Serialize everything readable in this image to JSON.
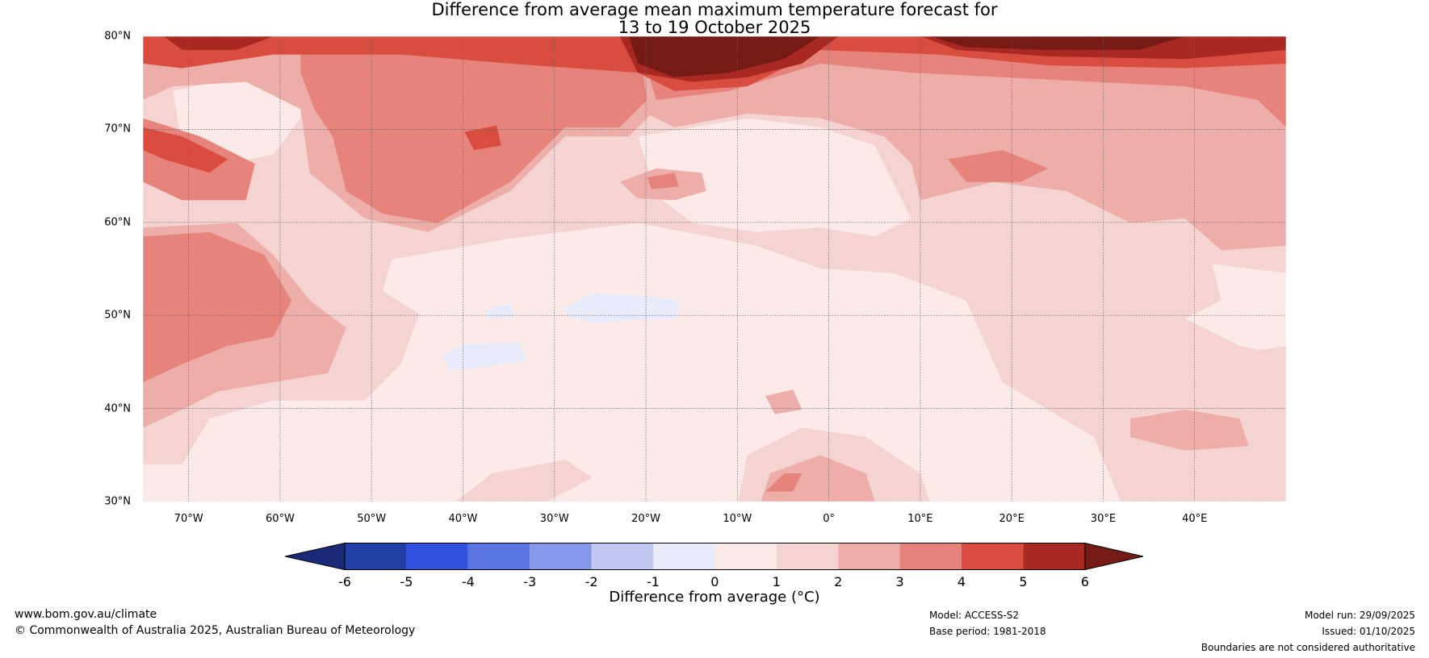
{
  "title": {
    "line1": "Difference from average mean maximum temperature forecast for",
    "line2": "13 to 19 October 2025"
  },
  "chart_data": {
    "type": "heatmap",
    "subtype": "filled contour map",
    "title": "Difference from average mean maximum temperature forecast for 13 to 19 October 2025",
    "lat_range": [
      30,
      80
    ],
    "lon_range": [
      -75,
      50
    ],
    "lat_ticks": [
      "30°N",
      "40°N",
      "50°N",
      "60°N",
      "70°N",
      "80°N"
    ],
    "lat_values": [
      30,
      40,
      50,
      60,
      70,
      80
    ],
    "lon_ticks": [
      "70°W",
      "60°W",
      "50°W",
      "40°W",
      "30°W",
      "20°W",
      "10°W",
      "0°",
      "10°E",
      "20°E",
      "30°E",
      "40°E"
    ],
    "lon_values": [
      -70,
      -60,
      -50,
      -40,
      -30,
      -20,
      -10,
      0,
      10,
      20,
      30,
      40
    ],
    "colorbar": {
      "label": "Difference from average (°C)",
      "ticks": [
        "-6",
        "-5",
        "-4",
        "-3",
        "-2",
        "-1",
        "0",
        "1",
        "2",
        "3",
        "4",
        "5",
        "6"
      ],
      "levels": [
        -6,
        -5,
        -4,
        -3,
        -2,
        -1,
        0,
        1,
        2,
        3,
        4,
        5,
        6
      ],
      "colors": [
        "#243ea8",
        "#3050de",
        "#5b75e3",
        "#8698ea",
        "#c1c9f3",
        "#e8ecfa",
        "#fbeae8",
        "#f5d3d0",
        "#edaeaa",
        "#e6837b",
        "#d94c40",
        "#a82822"
      ],
      "under_color": "#1b2a78",
      "over_color": "#761a15"
    },
    "summary": "Mostly +0 to +1 °C over the Atlantic and Europe; +3 to >6 °C over Greenland, the Arctic and Svalbard/Barents region; small -1 to 0 °C patches in the mid-Atlantic."
  },
  "footer": {
    "website": "www.bom.gov.au/climate",
    "copyright": "© Commonwealth of Australia 2025, Australian Bureau of Meteorology",
    "model": "Model: ACCESS-S2",
    "base_period": "Base period: 1981-2018",
    "model_run": "Model run: 29/09/2025",
    "issued": "Issued: 01/10/2025",
    "disclaimer": "Boundaries are not considered authoritative"
  }
}
